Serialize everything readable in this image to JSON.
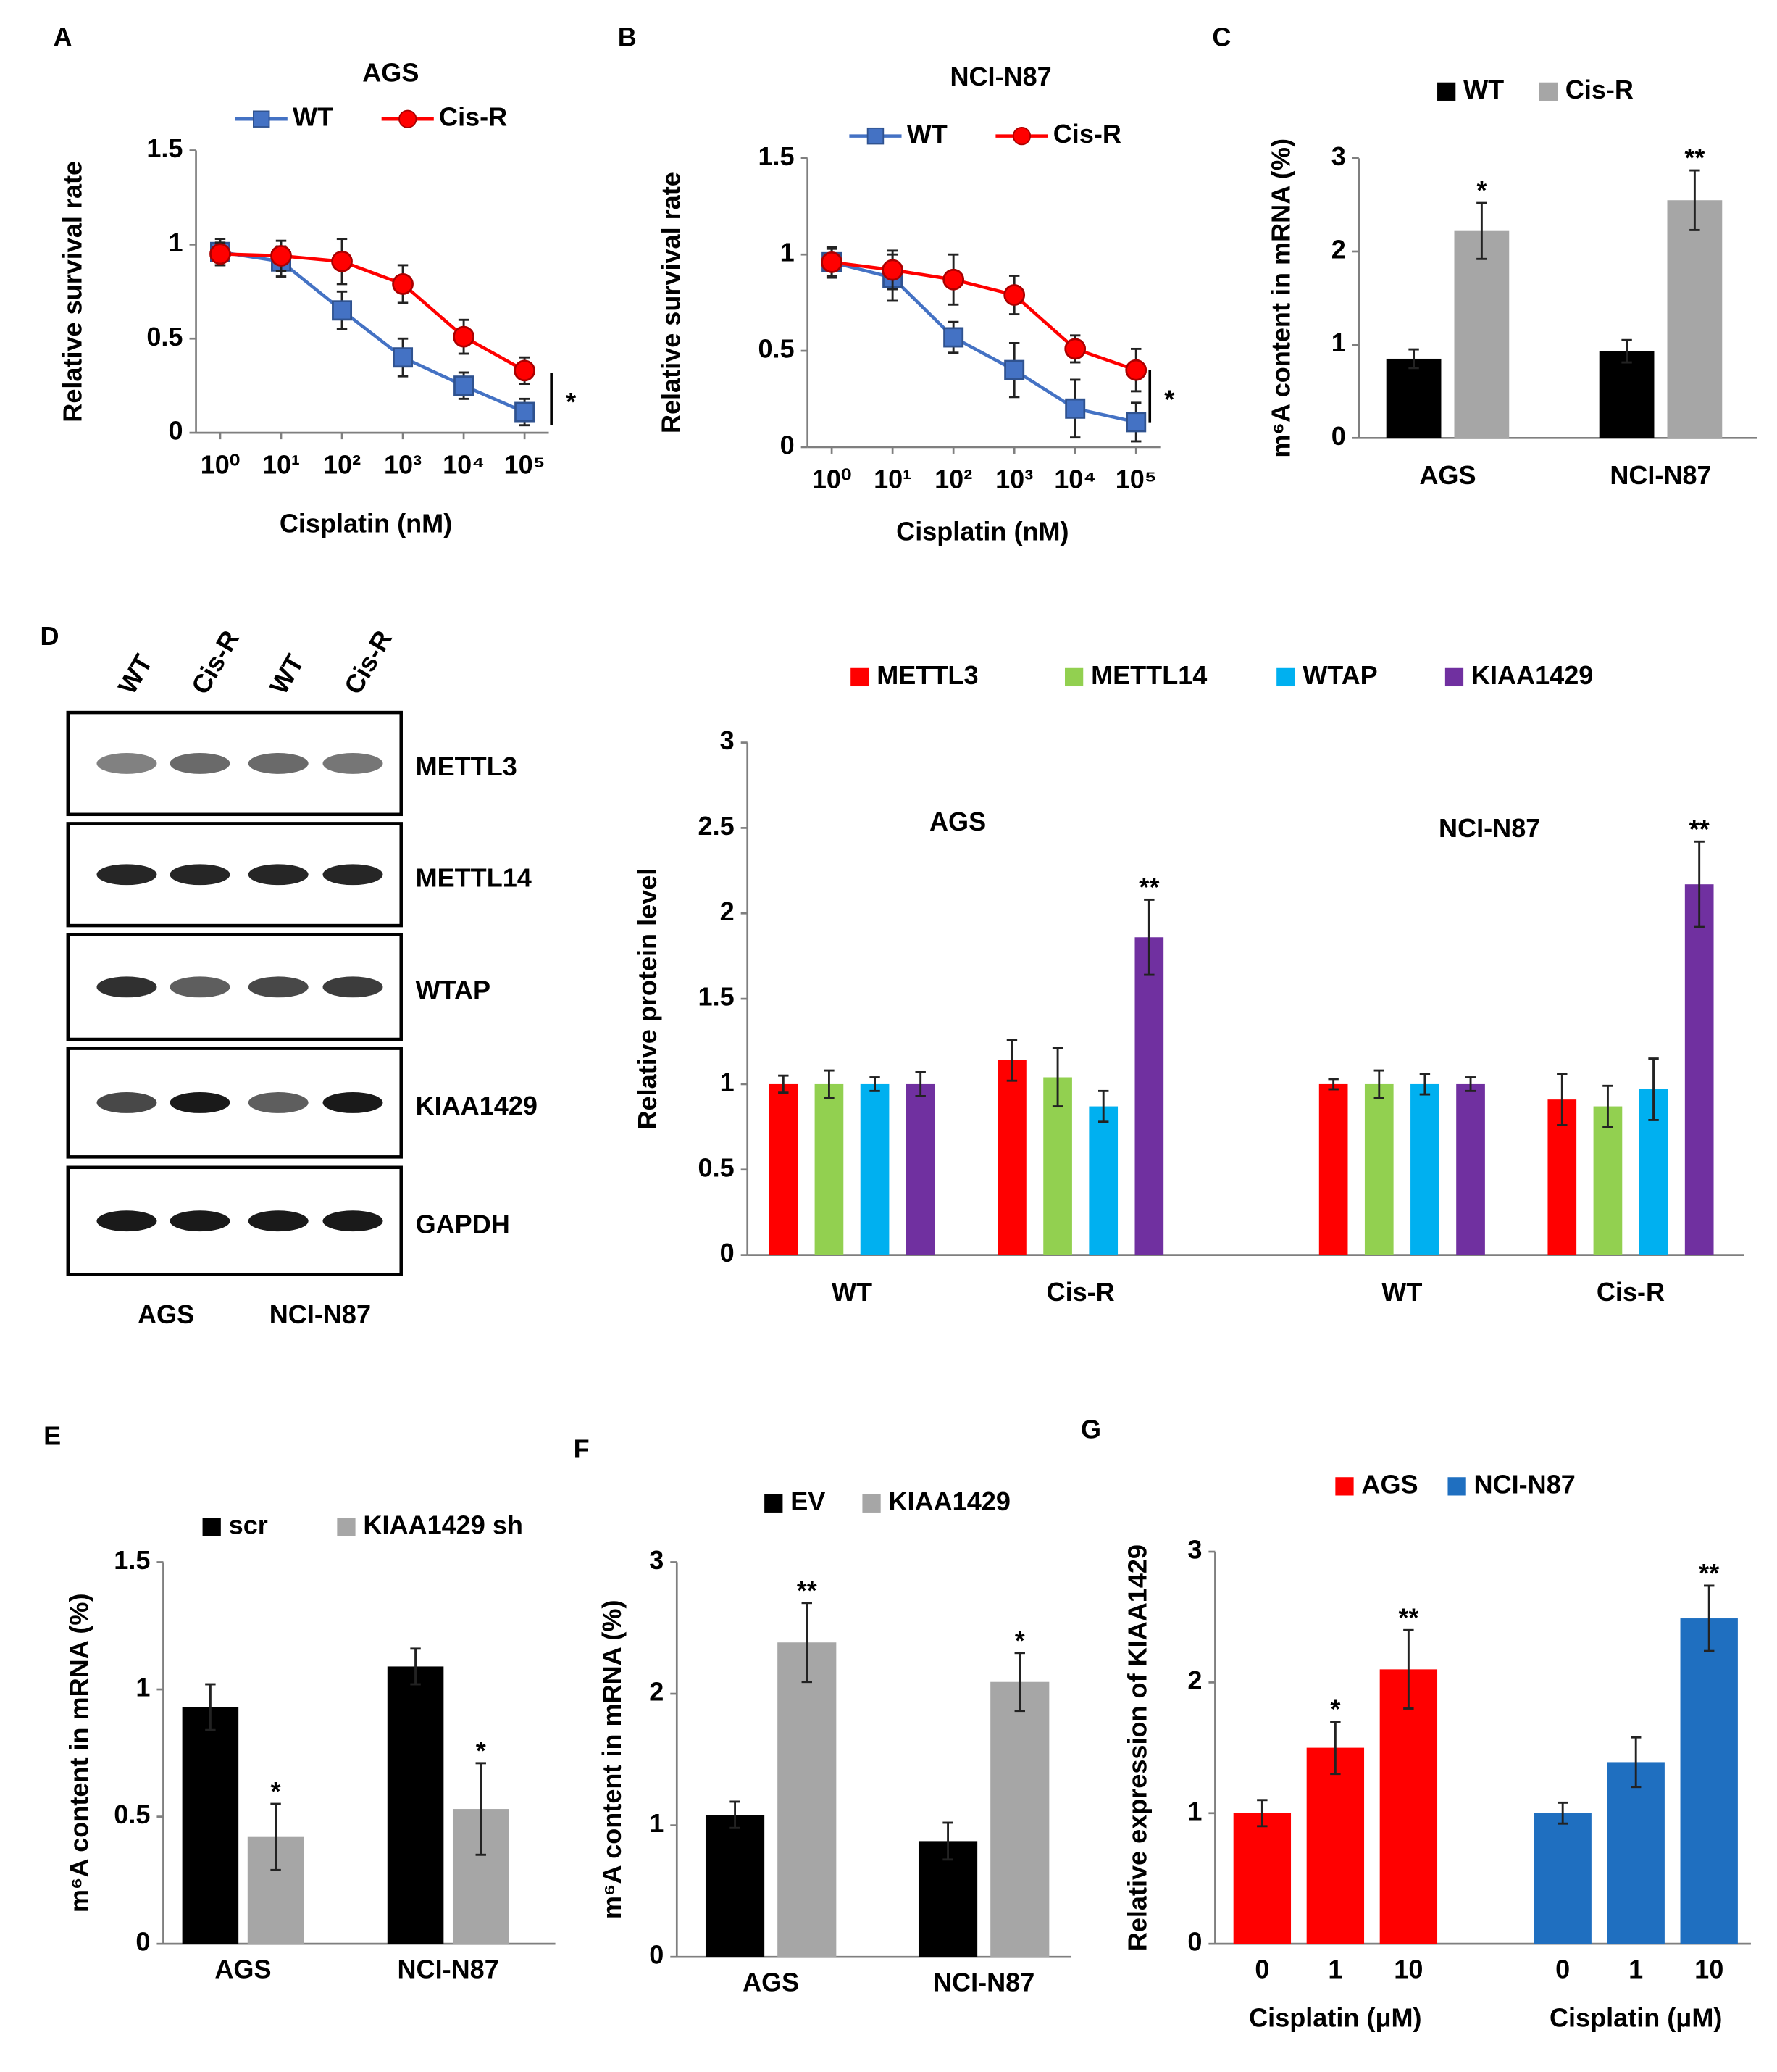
{
  "blot": {
    "panel": "D",
    "lanes": [
      "WT",
      "Cis-R",
      "WT",
      "Cis-R"
    ],
    "proteins": [
      "METTL3",
      "METTL14",
      "WTAP",
      "KIAA1429",
      "GAPDH"
    ],
    "groups": [
      "AGS",
      "NCI-N87"
    ]
  },
  "chart_data": [
    {
      "panel": "A",
      "type": "line",
      "title": "AGS",
      "xlabel": "Cisplatin (nM)",
      "ylabel": "Relative survival rate",
      "xscale": "log",
      "x": [
        1,
        10,
        100,
        1000,
        10000,
        100000
      ],
      "xlim": [
        0.4,
        250000
      ],
      "xticks": [
        {
          "value": 1,
          "label": "10⁰"
        },
        {
          "value": 10,
          "label": "10¹"
        },
        {
          "value": 100,
          "label": "10²"
        },
        {
          "value": 1000,
          "label": "10³"
        },
        {
          "value": 10000,
          "label": "10⁴"
        },
        {
          "value": 100000,
          "label": "10⁵"
        }
      ],
      "ylim": [
        0,
        1.5
      ],
      "yticks": [
        0,
        0.5,
        1,
        1.5
      ],
      "annotation": "*",
      "series": [
        {
          "name": "WT",
          "color": "#4472c4",
          "marker": "square",
          "values": [
            0.96,
            0.91,
            0.65,
            0.4,
            0.25,
            0.11
          ],
          "errors": [
            0.07,
            0.08,
            0.1,
            0.1,
            0.07,
            0.07
          ]
        },
        {
          "name": "Cis-R",
          "color": "#ff0000",
          "marker": "circle",
          "values": [
            0.95,
            0.94,
            0.91,
            0.79,
            0.51,
            0.33
          ],
          "errors": [
            0.06,
            0.08,
            0.12,
            0.1,
            0.09,
            0.07
          ]
        }
      ]
    },
    {
      "panel": "B",
      "type": "line",
      "title": "NCI-N87",
      "xlabel": "Cisplatin (nM)",
      "ylabel": "Relative survival rate",
      "xscale": "log",
      "x": [
        1,
        10,
        100,
        1000,
        10000,
        100000
      ],
      "xlim": [
        0.4,
        250000
      ],
      "xticks": [
        {
          "value": 1,
          "label": "10⁰"
        },
        {
          "value": 10,
          "label": "10¹"
        },
        {
          "value": 100,
          "label": "10²"
        },
        {
          "value": 1000,
          "label": "10³"
        },
        {
          "value": 10000,
          "label": "10⁴"
        },
        {
          "value": 100000,
          "label": "10⁵"
        }
      ],
      "ylim": [
        0,
        1.5
      ],
      "yticks": [
        0,
        0.5,
        1,
        1.5
      ],
      "annotation": "*",
      "series": [
        {
          "name": "WT",
          "color": "#4472c4",
          "marker": "square",
          "values": [
            0.96,
            0.88,
            0.57,
            0.4,
            0.2,
            0.13
          ],
          "errors": [
            0.07,
            0.12,
            0.08,
            0.14,
            0.15,
            0.1
          ]
        },
        {
          "name": "Cis-R",
          "color": "#ff0000",
          "marker": "circle",
          "values": [
            0.96,
            0.92,
            0.87,
            0.79,
            0.51,
            0.4
          ],
          "errors": [
            0.08,
            0.1,
            0.13,
            0.1,
            0.07,
            0.11
          ]
        }
      ]
    },
    {
      "panel": "C",
      "type": "bar",
      "ylabel": "m⁶A content in mRNA (%)",
      "categories": [
        "AGS",
        "NCI-N87"
      ],
      "ylim": [
        0,
        3
      ],
      "yticks": [
        0,
        1,
        2,
        3
      ],
      "series": [
        {
          "name": "WT",
          "color": "#000000",
          "values": [
            0.85,
            0.93
          ],
          "errors": [
            0.1,
            0.12
          ],
          "stars": [
            null,
            null
          ]
        },
        {
          "name": "Cis-R",
          "color": "#a6a6a6",
          "values": [
            2.22,
            2.55
          ],
          "errors": [
            0.3,
            0.32
          ],
          "stars": [
            "*",
            "**"
          ]
        }
      ]
    },
    {
      "type": "bar",
      "ylabel": "Relative protein level",
      "categories": [
        "WT",
        "Cis-R",
        "WT",
        "Cis-R"
      ],
      "group_labels": [
        "AGS",
        "NCI-N87"
      ],
      "ylim": [
        0,
        3
      ],
      "yticks": [
        0,
        0.5,
        1,
        1.5,
        2,
        2.5,
        3
      ],
      "series": [
        {
          "name": "METTL3",
          "color": "#ff0000",
          "values": [
            1.0,
            1.14,
            1.0,
            0.91
          ],
          "errors": [
            0.05,
            0.12,
            0.03,
            0.15
          ],
          "stars": [
            null,
            null,
            null,
            null
          ]
        },
        {
          "name": "METTL14",
          "color": "#92d050",
          "values": [
            1.0,
            1.04,
            1.0,
            0.87
          ],
          "errors": [
            0.08,
            0.17,
            0.08,
            0.12
          ],
          "stars": [
            null,
            null,
            null,
            null
          ]
        },
        {
          "name": "WTAP",
          "color": "#00b0f0",
          "values": [
            1.0,
            0.87,
            1.0,
            0.97
          ],
          "errors": [
            0.04,
            0.09,
            0.06,
            0.18
          ],
          "stars": [
            null,
            null,
            null,
            null
          ]
        },
        {
          "name": "KIAA1429",
          "color": "#7030a0",
          "values": [
            1.0,
            1.86,
            1.0,
            2.17
          ],
          "errors": [
            0.07,
            0.22,
            0.04,
            0.25
          ],
          "stars": [
            null,
            "**",
            null,
            "**"
          ]
        }
      ]
    },
    {
      "panel": "E",
      "type": "bar",
      "ylabel": "m⁶A content in mRNA (%)",
      "categories": [
        "AGS",
        "NCI-N87"
      ],
      "ylim": [
        0,
        1.5
      ],
      "yticks": [
        0,
        0.5,
        1,
        1.5
      ],
      "series": [
        {
          "name": "scr",
          "color": "#000000",
          "values": [
            0.93,
            1.09
          ],
          "errors": [
            0.09,
            0.07
          ],
          "stars": [
            null,
            null
          ]
        },
        {
          "name": "KIAA1429 sh",
          "color": "#a6a6a6",
          "values": [
            0.42,
            0.53
          ],
          "errors": [
            0.13,
            0.18
          ],
          "stars": [
            "*",
            "*"
          ]
        }
      ]
    },
    {
      "panel": "F",
      "type": "bar",
      "ylabel": "m⁶A content in mRNA (%)",
      "categories": [
        "AGS",
        "NCI-N87"
      ],
      "ylim": [
        0,
        3
      ],
      "yticks": [
        0,
        1,
        2,
        3
      ],
      "series": [
        {
          "name": "EV",
          "color": "#000000",
          "values": [
            1.08,
            0.88
          ],
          "errors": [
            0.1,
            0.14
          ],
          "stars": [
            null,
            null
          ]
        },
        {
          "name": "KIAA1429",
          "color": "#a6a6a6",
          "values": [
            2.39,
            2.09
          ],
          "errors": [
            0.3,
            0.22
          ],
          "stars": [
            "**",
            "*"
          ]
        }
      ]
    },
    {
      "panel": "G",
      "type": "bar",
      "ylabel": "Relative expression of KIAA1429",
      "xlabel": "Cisplatin (μM)",
      "categories": [
        "0",
        "1",
        "10"
      ],
      "ylim": [
        0,
        3
      ],
      "yticks": [
        0,
        1,
        2,
        3
      ],
      "series": [
        {
          "name": "AGS",
          "color": "#ff0000",
          "values": [
            1.0,
            1.5,
            2.1
          ],
          "errors": [
            0.1,
            0.2,
            0.3
          ],
          "stars": [
            null,
            "*",
            "**"
          ]
        },
        {
          "name": "NCI-N87",
          "color": "#1f6fc0",
          "values": [
            1.0,
            1.39,
            2.49
          ],
          "errors": [
            0.08,
            0.19,
            0.25
          ],
          "stars": [
            null,
            null,
            "**"
          ]
        }
      ]
    }
  ]
}
